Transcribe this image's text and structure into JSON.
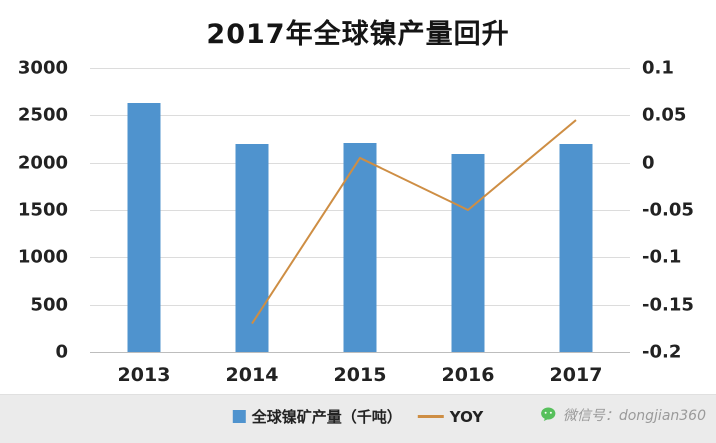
{
  "title": "2017年全球镍产量回升",
  "chart_data": {
    "type": "bar",
    "title": "2017年全球镍产量回升",
    "categories": [
      "2013",
      "2014",
      "2015",
      "2016",
      "2017"
    ],
    "series": [
      {
        "name": "全球镍矿产量（千吨）",
        "type": "bar",
        "axis": "left",
        "color": "#4F93CE",
        "values": [
          2630,
          2200,
          2210,
          2090,
          2200
        ]
      },
      {
        "name": "YOY",
        "type": "line",
        "axis": "right",
        "color": "#CE8E44",
        "values": [
          null,
          -0.17,
          0.005,
          -0.05,
          0.045
        ]
      }
    ],
    "left_axis": {
      "min": 0,
      "max": 3000,
      "ticks": [
        "3000",
        "2500",
        "2000",
        "1500",
        "1000",
        "500",
        "0"
      ]
    },
    "right_axis": {
      "min": -0.2,
      "max": 0.1,
      "ticks": [
        "0.1",
        "0.05",
        "0",
        "-0.05",
        "-0.1",
        "-0.15",
        "-0.2"
      ]
    },
    "grid": true,
    "legend_position": "bottom"
  },
  "footer": {
    "wechat_label": "微信号：dongjian360"
  }
}
